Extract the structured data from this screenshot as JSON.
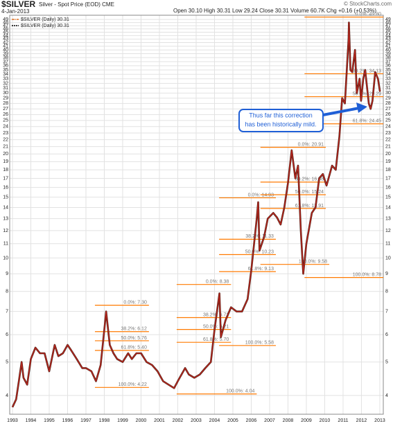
{
  "chart_data": {
    "type": "line",
    "title": "$SILVER",
    "subtitle": "Silver - Spot Price (EOD) CME",
    "date": "4-Jan-2013",
    "source": "© StockCharts.com",
    "quote": "Open 30.10 High 30.31 Low 29.24 Close 30.31 Volume 60.7K Chg +0.16 (+0.53%)",
    "legend": [
      {
        "label": "$SILVER (Daily) 30.31",
        "color": "#e07020"
      },
      {
        "label": "$SILVER (Daily) 30.31",
        "color": "#000000"
      }
    ],
    "log_scale": true,
    "grid": true,
    "color": "#b3261e",
    "x": [
      1993.0,
      1993.2,
      1993.35,
      1993.5,
      1993.6,
      1993.8,
      1994.0,
      1994.25,
      1994.5,
      1994.75,
      1995.0,
      1995.3,
      1995.5,
      1995.75,
      1996.0,
      1996.2,
      1996.5,
      1996.8,
      1997.0,
      1997.3,
      1997.55,
      1997.8,
      1998.0,
      1998.1,
      1998.3,
      1998.5,
      1998.7,
      1999.0,
      1999.3,
      1999.5,
      1999.75,
      2000.0,
      2000.3,
      2000.6,
      2000.9,
      2001.2,
      2001.5,
      2001.8,
      2002.0,
      2002.4,
      2002.6,
      2002.9,
      2003.2,
      2003.5,
      2003.8,
      2004.0,
      2004.27,
      2004.35,
      2004.6,
      2004.9,
      2005.2,
      2005.5,
      2005.8,
      2006.0,
      2006.3,
      2006.38,
      2006.45,
      2006.7,
      2006.9,
      2007.2,
      2007.4,
      2007.6,
      2007.8,
      2008.0,
      2008.2,
      2008.4,
      2008.55,
      2008.7,
      2008.83,
      2009.0,
      2009.3,
      2009.5,
      2009.7,
      2009.9,
      2010.1,
      2010.4,
      2010.6,
      2010.8,
      2010.95,
      2011.1,
      2011.3,
      2011.32,
      2011.4,
      2011.5,
      2011.65,
      2011.75,
      2011.9,
      2011.98,
      2012.1,
      2012.2,
      2012.4,
      2012.5,
      2012.6,
      2012.75,
      2012.9,
      2013.01
    ],
    "values": [
      3.7,
      3.9,
      4.4,
      5.0,
      4.5,
      4.3,
      5.1,
      5.5,
      5.3,
      5.3,
      4.7,
      5.6,
      5.2,
      5.3,
      5.6,
      5.4,
      5.1,
      4.8,
      4.8,
      4.7,
      4.4,
      4.9,
      6.2,
      7.0,
      5.6,
      5.3,
      5.1,
      5.0,
      5.3,
      5.1,
      5.3,
      5.3,
      5.0,
      4.9,
      4.7,
      4.4,
      4.3,
      4.2,
      4.4,
      4.8,
      4.6,
      4.5,
      4.6,
      4.8,
      5.0,
      6.2,
      7.9,
      5.9,
      6.6,
      7.2,
      7.0,
      7.0,
      7.6,
      9.2,
      13.0,
      14.5,
      10.5,
      11.5,
      13.0,
      13.5,
      13.1,
      12.5,
      14.0,
      16.5,
      20.5,
      17.0,
      18.5,
      12.0,
      9.0,
      11.0,
      13.5,
      14.0,
      17.0,
      17.5,
      16.2,
      18.5,
      18.0,
      22.5,
      29.0,
      28.0,
      43.0,
      48.0,
      35.0,
      34.5,
      40.0,
      30.0,
      33.0,
      28.5,
      33.0,
      35.0,
      28.0,
      27.0,
      28.5,
      34.5,
      33.0,
      30.31
    ],
    "xlim": [
      1992.85,
      2013.19
    ],
    "xticks": [
      1993,
      1994,
      1995,
      1996,
      1997,
      1998,
      1999,
      2000,
      2001,
      2002,
      2003,
      2004,
      2005,
      2006,
      2007,
      2008,
      2009,
      2010,
      2011,
      2012,
      2013
    ],
    "ylim": [
      3.53,
      50.4
    ],
    "yticks": [
      4,
      5,
      6,
      7,
      8,
      9,
      10,
      11,
      12,
      13,
      14,
      15,
      16,
      17,
      18,
      19,
      20,
      21,
      22,
      23,
      24,
      25,
      26,
      27,
      28,
      29,
      30,
      31,
      32,
      33,
      34,
      35,
      36,
      37,
      38,
      39,
      40,
      41,
      42,
      43,
      44,
      45,
      46,
      47,
      48,
      49
    ],
    "fib_levels": [
      {
        "label": "0.0%: 7.30",
        "value": 7.3,
        "x": [
          1997.49,
          2000.43
        ]
      },
      {
        "label": "38.2%: 6.12",
        "value": 6.12,
        "x": [
          1997.49,
          2000.43
        ]
      },
      {
        "label": "50.0%: 5.76",
        "value": 5.76,
        "x": [
          1997.49,
          2000.43
        ]
      },
      {
        "label": "61.8%: 5.40",
        "value": 5.4,
        "x": [
          1997.49,
          2000.43
        ]
      },
      {
        "label": "100.0%: 4.22",
        "value": 4.22,
        "x": [
          1997.49,
          2000.43
        ]
      },
      {
        "label": "0.0%: 8.38",
        "value": 8.38,
        "x": [
          2001.94,
          2004.9
        ]
      },
      {
        "label": "38.2%: 6.72",
        "value": 6.72,
        "x": [
          2001.94,
          2004.9
        ]
      },
      {
        "label": "50.0%: 6.21",
        "value": 6.21,
        "x": [
          2001.94,
          2004.9
        ]
      },
      {
        "label": "61.8%: 5.70",
        "value": 5.7,
        "x": [
          2001.94,
          2004.9
        ]
      },
      {
        "label": "100.0%: 4.04",
        "value": 4.04,
        "x": [
          2001.94,
          2006.3
        ]
      },
      {
        "label": "0.0%: 14.93",
        "value": 14.93,
        "x": [
          2004.25,
          2007.34
        ]
      },
      {
        "label": "38.2%: 11.33",
        "value": 11.33,
        "x": [
          2004.25,
          2007.34
        ]
      },
      {
        "label": "50.0%: 10.23",
        "value": 10.23,
        "x": [
          2004.25,
          2007.34
        ]
      },
      {
        "label": "61.8%: 9.13",
        "value": 9.13,
        "x": [
          2004.25,
          2007.34
        ]
      },
      {
        "label": "100.0%: 5.58",
        "value": 5.58,
        "x": [
          2004.25,
          2007.34
        ]
      },
      {
        "label": "0.0%: 20.91",
        "value": 20.91,
        "x": [
          2006.5,
          2010.06
        ]
      },
      {
        "label": "38.2%: 16.58",
        "value": 16.58,
        "x": [
          2006.5,
          2010.06
        ]
      },
      {
        "label": "50.0%: 15.24",
        "value": 15.24,
        "x": [
          2006.5,
          2010.06
        ]
      },
      {
        "label": "61.8%: 13.91",
        "value": 13.91,
        "x": [
          2006.5,
          2010.06
        ]
      },
      {
        "label": "100.0%: 9.58",
        "value": 9.58,
        "x": [
          2006.5,
          2010.25
        ]
      },
      {
        "label": "0.0%: 49.80",
        "value": 49.8,
        "x": [
          2008.9,
          2013.19
        ]
      },
      {
        "label": "38.2%: 34.13",
        "value": 34.13,
        "x": [
          2008.9,
          2013.19
        ]
      },
      {
        "label": "50.0%: 29.29",
        "value": 29.29,
        "x": [
          2008.9,
          2013.19
        ]
      },
      {
        "label": "61.8%: 24.45",
        "value": 24.45,
        "x": [
          2008.9,
          2013.19
        ]
      },
      {
        "label": "100.0%: 8.78",
        "value": 8.78,
        "x": [
          2008.9,
          2013.19
        ]
      }
    ],
    "fib_color": "#ff7a00",
    "callout": {
      "lines": [
        "Thus far this correction",
        "has been historically mild."
      ],
      "color": "#1f5fd6"
    }
  }
}
